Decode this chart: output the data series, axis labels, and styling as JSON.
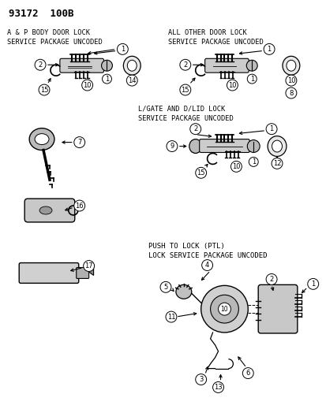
{
  "title": "93172  100B",
  "bg_color": "#ffffff",
  "figsize": [
    4.14,
    5.33
  ],
  "dpi": 100,
  "sections": {
    "sec1_title": "A & P BODY DOOR LOCK\nSERVICE PACKAGE UNCODED",
    "sec2_title": "ALL OTHER DOOR LOCK\nSERVICE PACKAGE UNCODED",
    "sec3_title": "L/GATE AND D/LID LOCK\nSERVICE PACKAGE UNCODED",
    "sec4_title": "PUSH TO LOCK (PTL)\nLOCK SERVICE PACKAGE UNCODED"
  }
}
